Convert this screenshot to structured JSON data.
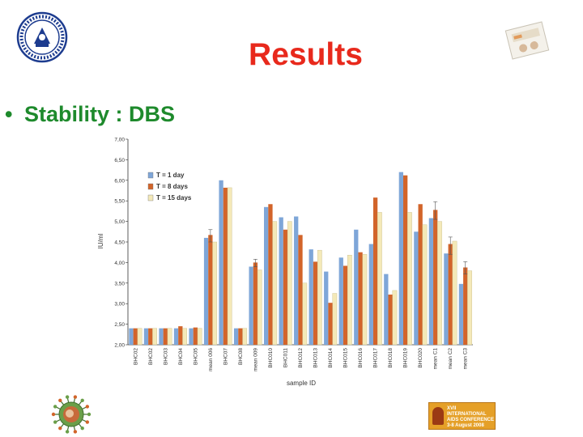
{
  "slide": {
    "title": "Results",
    "bullet_symbol": "•",
    "bullet_text": "Stability  : DBS",
    "icons": [
      "university-seal-logo",
      "dbs-card-photo",
      "virus-logo",
      "aids-conference-logo"
    ],
    "conference_badge": {
      "line1": "XVII INTERNATIONAL",
      "line2": "AIDS CONFERENCE",
      "line3": "3-8 August 2008 Mexico City"
    }
  },
  "chart_data": {
    "type": "bar",
    "xlabel": "sample ID",
    "ylabel": "IU/ml",
    "ylim": [
      2.0,
      7.0
    ],
    "yticks": [
      "2,00",
      "2,50",
      "3,00",
      "3,50",
      "4,00",
      "4,50",
      "5,00",
      "5,50",
      "6,00",
      "6,50",
      "7,00"
    ],
    "grid": false,
    "legend_position": "top-left",
    "categories": [
      "BHC02",
      "BHC02",
      "BHC03",
      "BHC04",
      "BHC05",
      "mean 006",
      "BHC07",
      "BHC08",
      "mean 009",
      "BHC010",
      "BHC011",
      "BHC012",
      "BHC013",
      "BHC014",
      "BHC015",
      "BHC016",
      "BHC017",
      "BHC018",
      "BHC019",
      "BHC020",
      "mean C1",
      "mean C2",
      "mean C3"
    ],
    "series": [
      {
        "name": "T = 1 day",
        "color": "#7ea6d8",
        "values": [
          2.4,
          2.4,
          2.4,
          2.4,
          2.4,
          4.6,
          6.0,
          2.4,
          3.9,
          5.35,
          5.1,
          5.12,
          4.32,
          3.78,
          4.12,
          4.8,
          4.45,
          3.72,
          6.2,
          4.75,
          5.08,
          4.22,
          3.48
        ]
      },
      {
        "name": "T = 8 days",
        "color": "#d2642a",
        "values": [
          2.4,
          2.4,
          2.4,
          2.45,
          2.42,
          4.67,
          5.82,
          2.4,
          4.0,
          5.42,
          4.8,
          4.67,
          4.02,
          3.02,
          3.92,
          4.25,
          5.58,
          3.22,
          6.12,
          5.42,
          5.28,
          4.45,
          3.88
        ]
      },
      {
        "name": "T = 15 days",
        "color": "#f4e9b8",
        "values": [
          2.4,
          2.4,
          2.4,
          2.4,
          2.4,
          4.5,
          5.82,
          2.4,
          3.82,
          5.0,
          5.0,
          3.5,
          4.3,
          3.25,
          4.18,
          4.2,
          5.22,
          3.32,
          5.22,
          4.92,
          5.0,
          4.52,
          3.8
        ]
      }
    ],
    "error_bars": [
      {
        "series": 1,
        "index": 5,
        "low": 4.5,
        "high": 4.8
      },
      {
        "series": 1,
        "index": 8,
        "low": 3.9,
        "high": 4.08
      },
      {
        "series": 1,
        "index": 20,
        "low": 5.05,
        "high": 5.48
      },
      {
        "series": 1,
        "index": 21,
        "low": 4.2,
        "high": 4.62
      },
      {
        "series": 1,
        "index": 22,
        "low": 3.72,
        "high": 4.02
      }
    ]
  }
}
